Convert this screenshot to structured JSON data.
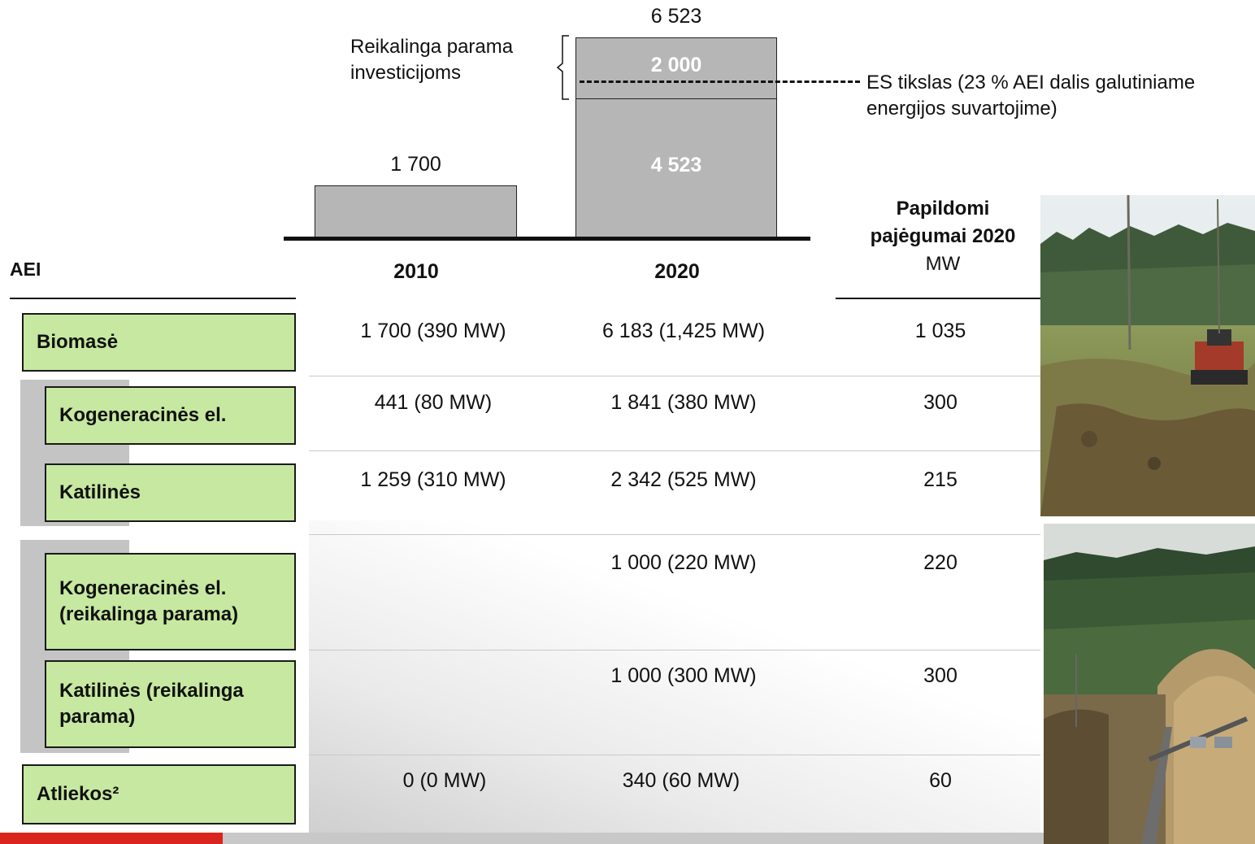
{
  "chart_data": {
    "type": "bar",
    "categories": [
      "2010",
      "2020"
    ],
    "series": [
      {
        "values": [
          1700,
          4523
        ]
      },
      {
        "values": [
          0,
          2000
        ]
      }
    ],
    "totals": [
      "1 700",
      "6 523"
    ],
    "segment_labels": {
      "base_2020": "4 523",
      "top_2020": "2 000"
    },
    "ymax": 6523,
    "brace_label": "Reikalinga parama investicijoms",
    "brace_label_lines": [
      "Reikalinga parama",
      "investicijoms"
    ],
    "target_label_lines": [
      "ES tikslas (23 % AEI dalis galutiniame",
      "energijos suvartojime)"
    ],
    "colors": {
      "bar": "#b6b6b6",
      "segment_text": "#ffffff"
    }
  },
  "table": {
    "header_aei": "AEI",
    "col_2010": "2010",
    "col_2020": "2020",
    "col_extra_line1": "Papildomi",
    "col_extra_line2": "pajėgumai 2020",
    "col_extra_unit": "MW",
    "rows": [
      {
        "label": "Biomasė",
        "v2010": "1 700 (390 MW)",
        "v2020": "6 183 (1,425 MW)",
        "extra": "1 035"
      },
      {
        "label": "Kogeneracinės el.",
        "v2010": "441 (80 MW)",
        "v2020": "1 841 (380 MW)",
        "extra": "300"
      },
      {
        "label": "Katilinės",
        "v2010": "1 259 (310 MW)",
        "v2020": "2 342 (525 MW)",
        "extra": "215"
      },
      {
        "label_line1": "Kogeneracinės el.",
        "label_line2": "(reikalinga parama)",
        "v2010": "",
        "v2020": "1 000 (220 MW)",
        "extra": "220"
      },
      {
        "label_line1": "Katilinės (reikalinga",
        "label_line2": "parama)",
        "v2010": "",
        "v2020": "1 000 (300 MW)",
        "extra": "300"
      },
      {
        "label": "Atliekos²",
        "v2010": "0 (0 MW)",
        "v2020": "340 (60 MW)",
        "extra": "60"
      }
    ]
  },
  "colors": {
    "green_box": "#c6e8a0",
    "accent_red": "#d9261c",
    "grey_band": "#c4c4c4"
  }
}
